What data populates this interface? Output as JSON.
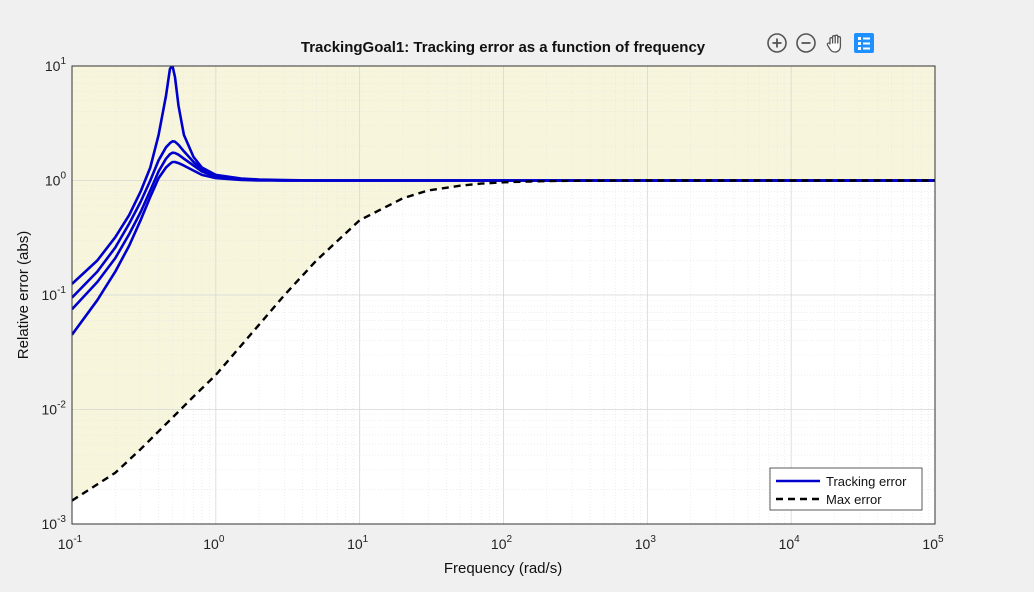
{
  "chart_data": {
    "type": "line",
    "title": "TrackingGoal1: Tracking error as a function of frequency",
    "xlabel": "Frequency (rad/s)",
    "ylabel": "Relative error (abs)",
    "xscale": "log",
    "yscale": "log",
    "xlim": [
      0.1,
      100000
    ],
    "ylim": [
      0.001,
      10
    ],
    "grid": true,
    "x_ticks": [
      {
        "base": "10",
        "exp": "-1",
        "value": 0.1
      },
      {
        "base": "10",
        "exp": "0",
        "value": 1
      },
      {
        "base": "10",
        "exp": "1",
        "value": 10
      },
      {
        "base": "10",
        "exp": "2",
        "value": 100
      },
      {
        "base": "10",
        "exp": "3",
        "value": 1000
      },
      {
        "base": "10",
        "exp": "4",
        "value": 10000
      },
      {
        "base": "10",
        "exp": "5",
        "value": 100000
      }
    ],
    "y_ticks": [
      {
        "base": "10",
        "exp": "-3",
        "value": 0.001
      },
      {
        "base": "10",
        "exp": "-2",
        "value": 0.01
      },
      {
        "base": "10",
        "exp": "-1",
        "value": 0.1
      },
      {
        "base": "10",
        "exp": "0",
        "value": 1
      },
      {
        "base": "10",
        "exp": "1",
        "value": 10
      }
    ],
    "legend": {
      "placement": "bottom-right",
      "entries": [
        {
          "label": "Tracking error",
          "style": "solid",
          "color": "#0000cc"
        },
        {
          "label": "Max error",
          "style": "dashed",
          "color": "#000000"
        }
      ]
    },
    "shaded_region": {
      "description_color": "#f7f6dc",
      "boundary_series": "Max error"
    },
    "x": [
      0.1,
      0.15,
      0.2,
      0.25,
      0.3,
      0.35,
      0.4,
      0.45,
      0.48,
      0.5,
      0.52,
      0.55,
      0.6,
      0.7,
      0.8,
      1.0,
      1.5,
      2,
      3,
      5,
      10,
      100,
      1000,
      10000,
      100000
    ],
    "series": [
      {
        "group": "Tracking error",
        "values": [
          0.125,
          0.2,
          0.32,
          0.5,
          0.8,
          1.3,
          2.5,
          5.5,
          9.5,
          10,
          8,
          4.5,
          2.5,
          1.6,
          1.3,
          1.12,
          1.04,
          1.02,
          1.01,
          1.0,
          1.0,
          1.0,
          1.0,
          1.0,
          1.0
        ]
      },
      {
        "group": "Tracking error",
        "values": [
          0.095,
          0.16,
          0.26,
          0.42,
          0.65,
          1.0,
          1.5,
          1.95,
          2.12,
          2.2,
          2.18,
          2.05,
          1.8,
          1.45,
          1.25,
          1.1,
          1.03,
          1.01,
          1.0,
          1.0,
          1.0,
          1.0,
          1.0,
          1.0,
          1.0
        ]
      },
      {
        "group": "Tracking error",
        "values": [
          0.075,
          0.13,
          0.21,
          0.34,
          0.53,
          0.82,
          1.2,
          1.55,
          1.7,
          1.75,
          1.74,
          1.68,
          1.55,
          1.35,
          1.2,
          1.08,
          1.02,
          1.01,
          1.0,
          1.0,
          1.0,
          1.0,
          1.0,
          1.0,
          1.0
        ]
      },
      {
        "group": "Tracking error",
        "values": [
          0.045,
          0.09,
          0.16,
          0.27,
          0.45,
          0.72,
          1.05,
          1.3,
          1.4,
          1.45,
          1.45,
          1.42,
          1.35,
          1.22,
          1.12,
          1.05,
          1.01,
          1.0,
          1.0,
          1.0,
          1.0,
          1.0,
          1.0,
          1.0,
          1.0
        ]
      },
      {
        "group": "Max error",
        "x": [
          0.1,
          0.2,
          0.3,
          0.5,
          0.7,
          1,
          2,
          3,
          5,
          10,
          20,
          30,
          50,
          70,
          100,
          150,
          200,
          300,
          500,
          1000,
          10000,
          100000
        ],
        "values": [
          0.0016,
          0.0028,
          0.0045,
          0.0085,
          0.013,
          0.02,
          0.055,
          0.1,
          0.2,
          0.45,
          0.7,
          0.82,
          0.9,
          0.94,
          0.965,
          0.98,
          0.988,
          0.994,
          0.998,
          1.0,
          1.0,
          1.0
        ]
      }
    ]
  },
  "toolbar": {
    "zoom_in_icon": "zoom-in-icon",
    "zoom_out_icon": "zoom-out-icon",
    "pan_icon": "hand-pan-icon",
    "data_icon": "data-tips-icon",
    "accent": "#1e90ff"
  }
}
